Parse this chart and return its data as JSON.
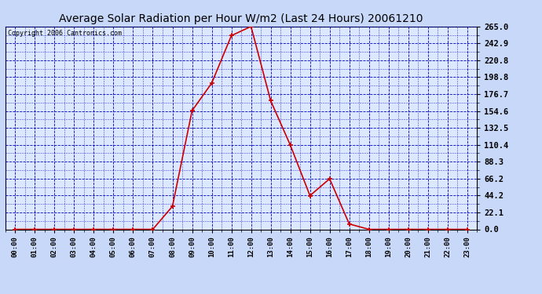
{
  "title": "Average Solar Radiation per Hour W/m2 (Last 24 Hours) 20061210",
  "copyright": "Copyright 2006 Cantronics.com",
  "hours": [
    0,
    1,
    2,
    3,
    4,
    5,
    6,
    7,
    8,
    9,
    10,
    11,
    12,
    13,
    14,
    15,
    16,
    17,
    18,
    19,
    20,
    21,
    22,
    23
  ],
  "hour_labels": [
    "00:00",
    "01:00",
    "02:00",
    "03:00",
    "04:00",
    "05:00",
    "06:00",
    "07:00",
    "08:00",
    "09:00",
    "10:00",
    "11:00",
    "12:00",
    "13:00",
    "14:00",
    "15:00",
    "16:00",
    "17:00",
    "18:00",
    "19:00",
    "20:00",
    "21:00",
    "22:00",
    "23:00"
  ],
  "values": [
    0,
    0,
    0,
    0,
    0,
    0,
    0,
    0,
    30,
    155,
    191,
    253,
    265,
    168,
    110,
    44,
    66,
    7,
    0,
    0,
    0,
    0,
    0,
    0
  ],
  "line_color": "#cc0000",
  "marker_color": "#cc0000",
  "bg_color": "#c8d8f8",
  "plot_bg": "#dce8ff",
  "grid_color": "#0000bb",
  "title_color": "#000000",
  "ylim_max": 265.0,
  "ylim_min": 0.0,
  "yticks": [
    0.0,
    22.1,
    44.2,
    66.2,
    88.3,
    110.4,
    132.5,
    154.6,
    176.7,
    198.8,
    220.8,
    242.9,
    265.0
  ]
}
